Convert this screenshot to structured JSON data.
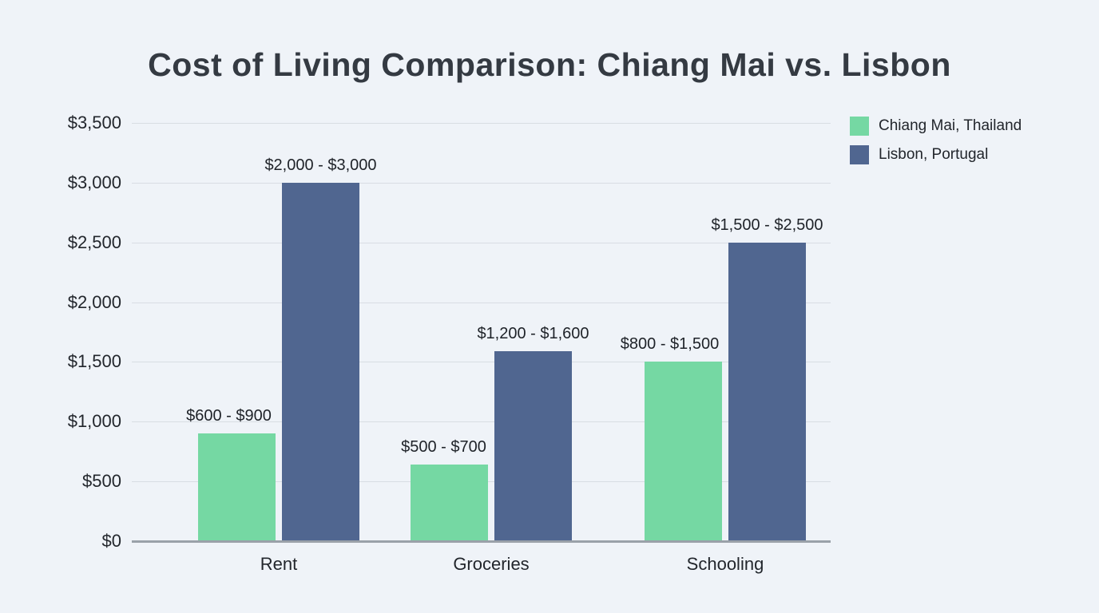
{
  "chart_data": {
    "type": "bar",
    "title": "Cost of Living Comparison: Chiang Mai vs. Lisbon",
    "categories": [
      "Rent",
      "Groceries",
      "Schooling"
    ],
    "series": [
      {
        "name": "Chiang Mai, Thailand",
        "color": "#75d8a3",
        "values": [
          900,
          640,
          1500
        ],
        "labels": [
          "$600 - $900",
          "$500 - $700",
          "$800 - $1,500"
        ]
      },
      {
        "name": "Lisbon, Portugal",
        "color": "#506690",
        "values": [
          3000,
          1590,
          2500
        ],
        "labels": [
          "$2,000 - $3,000",
          "$1,200 - $1,600",
          "$1,500 - $2,500"
        ]
      }
    ],
    "y_ticks": [
      "$0",
      "$500",
      "$1,000",
      "$1,500",
      "$2,000",
      "$2,500",
      "$3,000",
      "$3,500"
    ],
    "y_tick_values": [
      0,
      500,
      1000,
      1500,
      2000,
      2500,
      3000,
      3500
    ],
    "ylim": [
      0,
      3500
    ],
    "grid": true,
    "legend_position": "top-right"
  },
  "colors": {
    "background": "#eff3f8",
    "title_text": "#343a42",
    "tick_text": "#22262c",
    "bar_label_text": "#1e2228",
    "gridline": "#d8dde3",
    "baseline": "#9aa1a9"
  }
}
